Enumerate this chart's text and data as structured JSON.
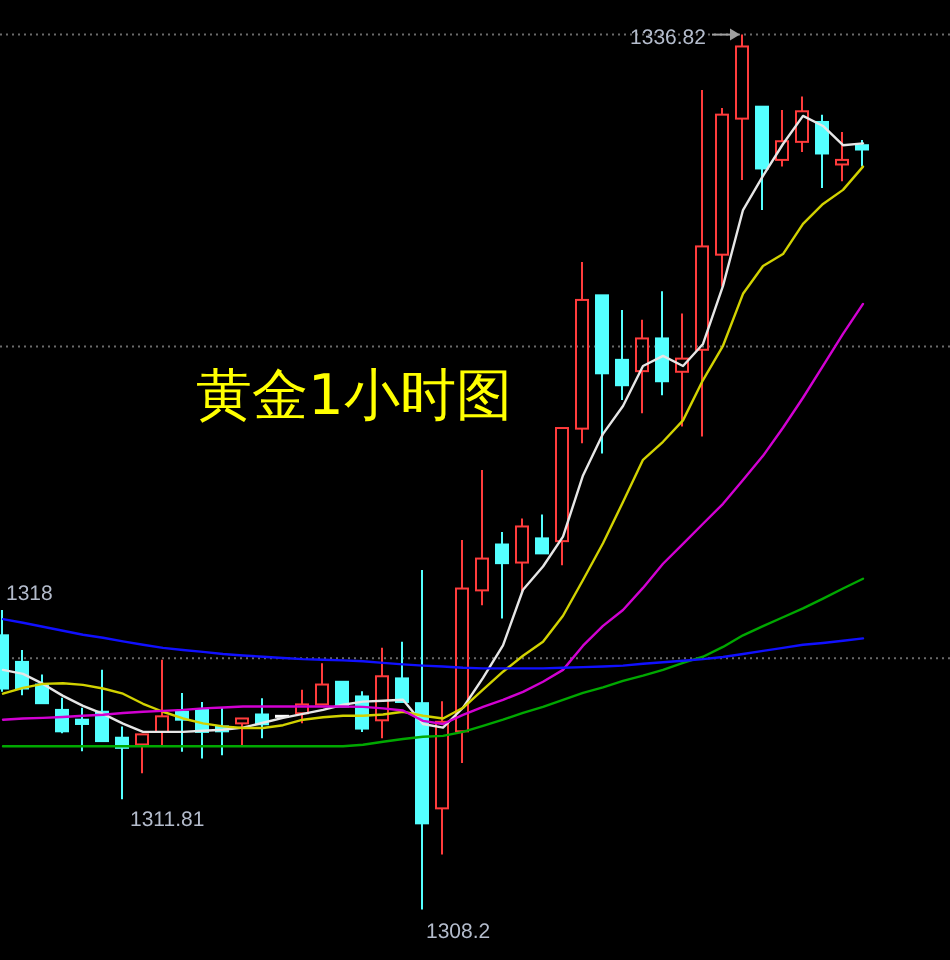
{
  "chart_data": {
    "type": "candlestick",
    "title": "黄金1小时图",
    "categories": [
      null,
      null,
      null,
      null,
      null,
      null,
      null,
      null,
      null,
      null,
      null,
      null,
      null,
      null,
      null,
      null,
      null,
      null,
      null,
      null,
      null,
      null,
      null,
      null,
      null,
      null,
      null,
      null,
      null,
      null,
      null,
      null,
      null,
      null,
      null,
      null,
      null,
      null,
      null,
      null,
      null,
      null,
      null,
      null
    ],
    "ohlc": [
      [
        1317.17,
        1318,
        1315.32,
        1315.43
      ],
      [
        1316.3,
        1316.69,
        1315.21,
        1315.43
      ],
      [
        1315.56,
        1315.89,
        1314.93,
        1314.95
      ],
      [
        1314.73,
        1315.13,
        1313.97,
        1314.03
      ],
      [
        1314.41,
        1314.8,
        1313.38,
        1314.27
      ],
      [
        1314.67,
        1316.04,
        1313.69,
        1313.71
      ],
      [
        1313.82,
        1314.19,
        1311.81,
        1313.49
      ],
      [
        1313.6,
        1313.93,
        1312.66,
        1313.93
      ],
      [
        1314.01,
        1316.37,
        1313.58,
        1314.52
      ],
      [
        1314.67,
        1315.28,
        1313.36,
        1314.41
      ],
      [
        1314.73,
        1314.99,
        1313.14,
        1314.01
      ],
      [
        1314.19,
        1314.8,
        1313.25,
        1314.03
      ],
      [
        1314.29,
        1314.45,
        1313.54,
        1314.45
      ],
      [
        1314.58,
        1315.11,
        1313.8,
        1314.26
      ],
      [
        1314.52,
        1314.53,
        1314.51,
        1314.52
      ],
      [
        1314.62,
        1315.39,
        1314.29,
        1314.91
      ],
      [
        1314.91,
        1316.26,
        1314.91,
        1315.56
      ],
      [
        1315.65,
        1315.65,
        1314.84,
        1314.84
      ],
      [
        1315.17,
        1315.34,
        1314.01,
        1314.12
      ],
      [
        1314.39,
        1316.76,
        1313.8,
        1315.83
      ],
      [
        1315.76,
        1316.96,
        1314.99,
        1314.99
      ],
      [
        1314.95,
        1319.31,
        1308.2,
        1311.02
      ],
      [
        1311.51,
        1315.01,
        1310.0,
        1314.34
      ],
      [
        1314.03,
        1320.29,
        1312.99,
        1318.7
      ],
      [
        1318.64,
        1322.58,
        1318.15,
        1319.68
      ],
      [
        1320.14,
        1320.55,
        1317.72,
        1319.53
      ],
      [
        1319.55,
        1320.99,
        1318.55,
        1320.73
      ],
      [
        1320.34,
        1321.12,
        1319.85,
        1319.85
      ],
      [
        1320.25,
        1323.95,
        1319.46,
        1323.95
      ],
      [
        1323.93,
        1329.38,
        1323.45,
        1328.14
      ],
      [
        1328.29,
        1328.29,
        1323.12,
        1325.74
      ],
      [
        1326.18,
        1327.81,
        1324.87,
        1325.35
      ],
      [
        1325.81,
        1327.49,
        1324.43,
        1326.88
      ],
      [
        1326.88,
        1328.42,
        1325.02,
        1325.48
      ],
      [
        1325.79,
        1327.7,
        1324.0,
        1326.22
      ],
      [
        1326.51,
        1335.01,
        1323.67,
        1329.89
      ],
      [
        1329.62,
        1334.42,
        1328.58,
        1334.2
      ],
      [
        1334.07,
        1336.82,
        1332.06,
        1336.43
      ],
      [
        1334.46,
        1334.46,
        1331.08,
        1332.44
      ],
      [
        1332.72,
        1334.35,
        1332.5,
        1333.33
      ],
      [
        1333.31,
        1334.79,
        1332.98,
        1334.31
      ],
      [
        1333.96,
        1334.2,
        1331.8,
        1332.93
      ],
      [
        1332.57,
        1333.63,
        1332.02,
        1332.72
      ],
      [
        1333.2,
        1333.37,
        1332.5,
        1333.06
      ]
    ],
    "colors": [
      "#54ffff",
      "#54ffff",
      "#54ffff",
      "#54ffff",
      "#54ffff",
      "#54ffff",
      "#54ffff",
      "#ff3c3c",
      "#ff3c3c",
      "#54ffff",
      "#54ffff",
      "#54ffff",
      "#ff3c3c",
      "#54ffff",
      "#ffffff",
      "#ff3c3c",
      "#ff3c3c",
      "#54ffff",
      "#54ffff",
      "#ff3c3c",
      "#54ffff",
      "#54ffff",
      "#ff3c3c",
      "#ff3c3c",
      "#ff3c3c",
      "#54ffff",
      "#ff3c3c",
      "#54ffff",
      "#ff3c3c",
      "#ff3c3c",
      "#54ffff",
      "#54ffff",
      "#ff3c3c",
      "#54ffff",
      "#ff3c3c",
      "#ff3c3c",
      "#ff3c3c",
      "#ff3c3c",
      "#54ffff",
      "#ff3c3c",
      "#ff3c3c",
      "#54ffff",
      "#ff3c3c",
      "#54ffff"
    ],
    "series": [
      {
        "type": "line",
        "color": "#e6e6e6",
        "values": [
          1316.04,
          1315.91,
          1315.58,
          1315.19,
          1314.86,
          1314.6,
          1314.28,
          1314.01,
          1314.01,
          1314.01,
          1314.05,
          1314.08,
          1314.15,
          1314.31,
          1314.47,
          1314.6,
          1314.73,
          1314.9,
          1315.0,
          1315.03,
          1315.06,
          1314.27,
          1314.15,
          1314.8,
          1315.78,
          1316.84,
          1318.66,
          1319.42,
          1320.4,
          1322.4,
          1323.76,
          1324.67,
          1325.98,
          1326.31,
          1325.98,
          1326.7,
          1328.6,
          1331.08,
          1332.2,
          1333.24,
          1334.16,
          1333.83,
          1333.2,
          1333.26
        ]
      },
      {
        "type": "line",
        "color": "#d2d200",
        "values": [
          1315.26,
          1315.45,
          1315.58,
          1315.6,
          1315.55,
          1315.43,
          1315.26,
          1314.93,
          1314.67,
          1314.45,
          1314.29,
          1314.19,
          1314.14,
          1314.14,
          1314.23,
          1314.41,
          1314.49,
          1314.54,
          1314.54,
          1314.58,
          1314.67,
          1314.54,
          1314.45,
          1314.8,
          1315.39,
          1315.98,
          1316.5,
          1316.96,
          1317.81,
          1318.98,
          1320.18,
          1321.53,
          1322.91,
          1323.5,
          1324.2,
          1325.52,
          1326.64,
          1328.34,
          1329.25,
          1329.64,
          1330.63,
          1331.28,
          1331.74,
          1332.5
        ]
      },
      {
        "type": "line",
        "color": "#d200d2",
        "values": [
          1314.41,
          1314.45,
          1314.47,
          1314.5,
          1314.54,
          1314.57,
          1314.63,
          1314.67,
          1314.7,
          1314.73,
          1314.78,
          1314.81,
          1314.84,
          1314.84,
          1314.84,
          1314.84,
          1314.84,
          1314.84,
          1314.83,
          1314.78,
          1314.71,
          1314.37,
          1314.27,
          1314.57,
          1314.83,
          1315.06,
          1315.32,
          1315.65,
          1316.04,
          1316.83,
          1317.48,
          1318.0,
          1318.72,
          1319.51,
          1320.16,
          1320.82,
          1321.47,
          1322.25,
          1323.04,
          1323.96,
          1324.94,
          1325.98,
          1327.03,
          1328.01
        ]
      },
      {
        "type": "line",
        "color": "#00a800",
        "values": [
          1313.54,
          1313.54,
          1313.54,
          1313.54,
          1313.54,
          1313.54,
          1313.54,
          1313.54,
          1313.54,
          1313.54,
          1313.54,
          1313.54,
          1313.54,
          1313.54,
          1313.54,
          1313.54,
          1313.54,
          1313.54,
          1313.59,
          1313.69,
          1313.78,
          1313.85,
          1313.88,
          1314.01,
          1314.21,
          1314.41,
          1314.63,
          1314.83,
          1315.06,
          1315.29,
          1315.47,
          1315.68,
          1315.85,
          1316.04,
          1316.27,
          1316.47,
          1316.79,
          1317.17,
          1317.47,
          1317.76,
          1318.05,
          1318.37,
          1318.7,
          1319.02
        ]
      },
      {
        "type": "line",
        "color": "#1010ff",
        "values": [
          1317.7,
          1317.58,
          1317.45,
          1317.32,
          1317.19,
          1317.09,
          1316.97,
          1316.86,
          1316.76,
          1316.69,
          1316.63,
          1316.56,
          1316.51,
          1316.47,
          1316.43,
          1316.39,
          1316.37,
          1316.35,
          1316.32,
          1316.27,
          1316.22,
          1316.18,
          1316.15,
          1316.11,
          1316.09,
          1316.09,
          1316.09,
          1316.09,
          1316.11,
          1316.13,
          1316.15,
          1316.18,
          1316.24,
          1316.29,
          1316.34,
          1316.39,
          1316.46,
          1316.56,
          1316.66,
          1316.76,
          1316.86,
          1316.92,
          1316.99,
          1317.07
        ]
      }
    ],
    "ylim": [
      1306.55,
      1337.95
    ],
    "yticks": [
      {
        "value": 1316.42,
        "label": null
      },
      {
        "value": 1326.62,
        "label": null
      },
      {
        "value": 1336.82,
        "label": null
      }
    ],
    "grid": "y",
    "tick_labels": false,
    "annotations": [
      "1336.82",
      "1318",
      "1311.81",
      "1308.2"
    ]
  }
}
